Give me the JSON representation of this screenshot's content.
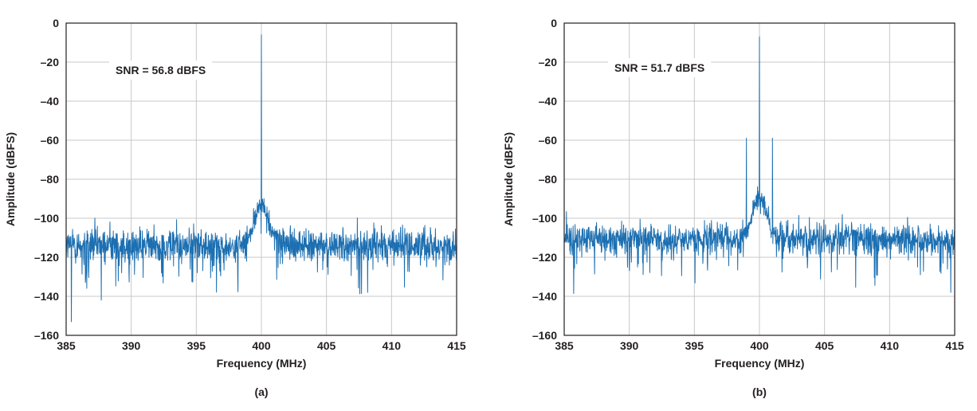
{
  "chart_data": [
    {
      "type": "line",
      "panel_label": "(a)",
      "annotation": "SNR = 56.8 dBFS",
      "xlabel": "Frequency (MHz)",
      "ylabel": "Amplitude (dBFS)",
      "xlim": [
        385,
        415
      ],
      "ylim": [
        -160,
        0
      ],
      "x_ticks": [
        "385",
        "390",
        "395",
        "400",
        "405",
        "410",
        "415"
      ],
      "y_ticks": [
        "0",
        "–20",
        "–40",
        "–60",
        "–80",
        "–100",
        "–120",
        "–140",
        "–160"
      ],
      "grid": true,
      "color": "#1c6fb1",
      "noise_floor_dbfs": -114,
      "noise_spread_db": 5,
      "series": [
        {
          "values": [
            {
              "x": 400.0,
              "y": -6
            },
            {
              "x": 385.4,
              "y": -153
            },
            {
              "x": 387.7,
              "y": -142
            },
            {
              "x": 399.4,
              "y": -95
            },
            {
              "x": 399.7,
              "y": -92
            },
            {
              "x": 400.2,
              "y": -90
            },
            {
              "x": 400.6,
              "y": -96
            },
            {
              "x": 398.9,
              "y": -104
            },
            {
              "x": 401.2,
              "y": -106
            }
          ]
        }
      ]
    },
    {
      "type": "line",
      "panel_label": "(b)",
      "annotation": "SNR = 51.7 dBFS",
      "xlabel": "Frequency (MHz)",
      "ylabel": "Amplitude (dBFS)",
      "xlim": [
        385,
        415
      ],
      "ylim": [
        -160,
        0
      ],
      "x_ticks": [
        "385",
        "390",
        "395",
        "400",
        "405",
        "410",
        "415"
      ],
      "y_ticks": [
        "0",
        "–20",
        "–40",
        "–60",
        "–80",
        "–100",
        "–120",
        "–140",
        "–160"
      ],
      "grid": true,
      "color": "#1c6fb1",
      "noise_floor_dbfs": -111,
      "noise_spread_db": 4.5,
      "series": [
        {
          "values": [
            {
              "x": 400.0,
              "y": -7
            },
            {
              "x": 399.0,
              "y": -59
            },
            {
              "x": 401.0,
              "y": -59
            },
            {
              "x": 399.5,
              "y": -91
            },
            {
              "x": 399.8,
              "y": -88
            },
            {
              "x": 400.3,
              "y": -89
            },
            {
              "x": 400.7,
              "y": -94
            },
            {
              "x": 397.0,
              "y": -103
            },
            {
              "x": 414.7,
              "y": -138
            }
          ]
        }
      ]
    }
  ]
}
